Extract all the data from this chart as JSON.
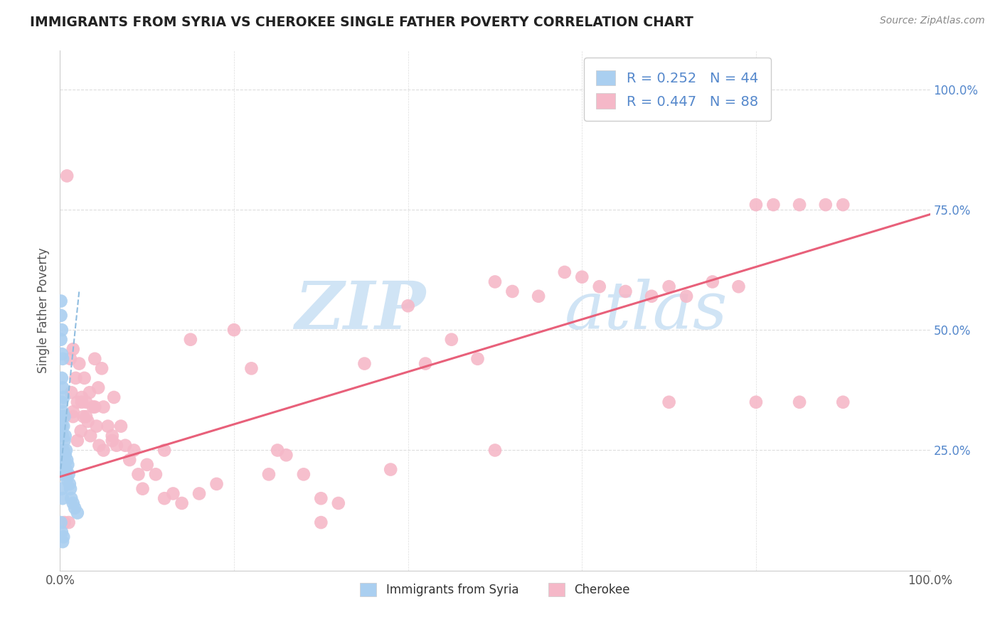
{
  "title": "IMMIGRANTS FROM SYRIA VS CHEROKEE SINGLE FATHER POVERTY CORRELATION CHART",
  "source": "Source: ZipAtlas.com",
  "ylabel": "Single Father Poverty",
  "ytick_labels": [
    "25.0%",
    "50.0%",
    "75.0%",
    "100.0%"
  ],
  "ytick_values": [
    0.25,
    0.5,
    0.75,
    1.0
  ],
  "xlim": [
    0.0,
    1.0
  ],
  "ylim": [
    0.0,
    1.08
  ],
  "legend_line1": "R = 0.252   N = 44",
  "legend_line2": "R = 0.447   N = 88",
  "syria_color": "#aacff0",
  "cherokee_color": "#f5b8c8",
  "syria_line_color": "#90bde0",
  "cherokee_line_color": "#e8607a",
  "watermark_top": "ZIP",
  "watermark_bot": "atlas",
  "watermark_color": "#d0e4f5",
  "background_color": "#ffffff",
  "grid_color": "#dddddd",
  "title_color": "#222222",
  "source_color": "#888888",
  "ylabel_color": "#555555",
  "ytick_color": "#5588cc",
  "xtick_color": "#555555",
  "legend_r_color": "#5588cc",
  "legend_n_color": "#333333",
  "syria_x": [
    0.001,
    0.001,
    0.001,
    0.001,
    0.001,
    0.002,
    0.002,
    0.002,
    0.002,
    0.002,
    0.002,
    0.003,
    0.003,
    0.003,
    0.003,
    0.003,
    0.004,
    0.004,
    0.004,
    0.004,
    0.005,
    0.005,
    0.005,
    0.006,
    0.006,
    0.006,
    0.007,
    0.007,
    0.008,
    0.008,
    0.009,
    0.01,
    0.011,
    0.012,
    0.013,
    0.015,
    0.017,
    0.02,
    0.002,
    0.003,
    0.001,
    0.002,
    0.004,
    0.003
  ],
  "syria_y": [
    0.56,
    0.53,
    0.48,
    0.32,
    0.28,
    0.5,
    0.45,
    0.4,
    0.35,
    0.3,
    0.25,
    0.44,
    0.38,
    0.33,
    0.28,
    0.22,
    0.36,
    0.3,
    0.25,
    0.2,
    0.32,
    0.27,
    0.22,
    0.28,
    0.24,
    0.2,
    0.25,
    0.21,
    0.23,
    0.19,
    0.22,
    0.2,
    0.18,
    0.17,
    0.15,
    0.14,
    0.13,
    0.12,
    0.17,
    0.15,
    0.1,
    0.08,
    0.07,
    0.06
  ],
  "cherokee_x": [
    0.005,
    0.008,
    0.01,
    0.012,
    0.013,
    0.015,
    0.015,
    0.018,
    0.02,
    0.022,
    0.024,
    0.025,
    0.027,
    0.028,
    0.03,
    0.032,
    0.034,
    0.035,
    0.038,
    0.04,
    0.042,
    0.044,
    0.045,
    0.048,
    0.05,
    0.055,
    0.06,
    0.062,
    0.065,
    0.07,
    0.075,
    0.08,
    0.085,
    0.09,
    0.095,
    0.1,
    0.11,
    0.12,
    0.13,
    0.14,
    0.15,
    0.16,
    0.18,
    0.2,
    0.22,
    0.24,
    0.26,
    0.28,
    0.3,
    0.32,
    0.35,
    0.38,
    0.4,
    0.42,
    0.45,
    0.48,
    0.5,
    0.52,
    0.55,
    0.58,
    0.6,
    0.62,
    0.65,
    0.68,
    0.7,
    0.72,
    0.75,
    0.78,
    0.8,
    0.82,
    0.85,
    0.88,
    0.9,
    0.02,
    0.03,
    0.04,
    0.05,
    0.06,
    0.12,
    0.25,
    0.3,
    0.5,
    0.7,
    0.8,
    0.85,
    0.9,
    0.015,
    0.025
  ],
  "cherokee_y": [
    0.1,
    0.82,
    0.1,
    0.44,
    0.37,
    0.46,
    0.32,
    0.4,
    0.35,
    0.43,
    0.29,
    0.36,
    0.32,
    0.4,
    0.35,
    0.31,
    0.37,
    0.28,
    0.34,
    0.44,
    0.3,
    0.38,
    0.26,
    0.42,
    0.34,
    0.3,
    0.28,
    0.36,
    0.26,
    0.3,
    0.26,
    0.23,
    0.25,
    0.2,
    0.17,
    0.22,
    0.2,
    0.15,
    0.16,
    0.14,
    0.48,
    0.16,
    0.18,
    0.5,
    0.42,
    0.2,
    0.24,
    0.2,
    0.1,
    0.14,
    0.43,
    0.21,
    0.55,
    0.43,
    0.48,
    0.44,
    0.6,
    0.58,
    0.57,
    0.62,
    0.61,
    0.59,
    0.58,
    0.57,
    0.59,
    0.57,
    0.6,
    0.59,
    0.76,
    0.76,
    0.76,
    0.76,
    0.76,
    0.27,
    0.32,
    0.34,
    0.25,
    0.27,
    0.25,
    0.25,
    0.15,
    0.25,
    0.35,
    0.35,
    0.35,
    0.35,
    0.33,
    0.35
  ],
  "syria_trend_x": [
    0.0,
    0.022
  ],
  "syria_trend_y": [
    0.195,
    0.58
  ],
  "cherokee_trend_x": [
    0.0,
    1.0
  ],
  "cherokee_trend_y": [
    0.195,
    0.74
  ]
}
